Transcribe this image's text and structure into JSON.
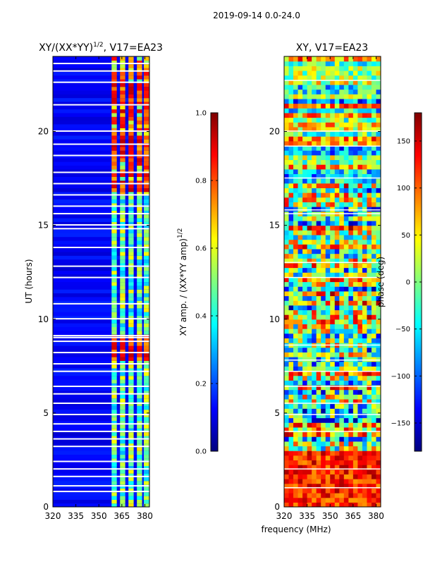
{
  "figure": {
    "suptitle": "2019-09-14 0.0-24.0",
    "xlabel": "frequency (MHz)"
  },
  "colors": {
    "jet": [
      "#00007f",
      "#0000ff",
      "#007fff",
      "#00ffff",
      "#7fff7f",
      "#ffff00",
      "#ff7f00",
      "#ff0000",
      "#7f0000"
    ],
    "gap": "#ffffff"
  },
  "chart_data": [
    {
      "type": "heatmap",
      "title_main": "XY/(XX*YY)",
      "title_sup": "1/2",
      "title_rest": ", V17=EA23",
      "xlabel": "",
      "ylabel": "UT (hours)",
      "xlim": [
        320,
        383
      ],
      "ylim": [
        0,
        24
      ],
      "xticks": [
        320,
        335,
        350,
        365,
        380
      ],
      "xtick_labels": [
        "320",
        "335",
        "350",
        "365",
        "380"
      ],
      "yticks": [
        0,
        5,
        10,
        15,
        20
      ],
      "ytick_labels": [
        "0",
        "5",
        "10",
        "15",
        "20"
      ],
      "colorbar": {
        "label_main": "XY amp. / (XX*YY amp)",
        "label_sup": "1/2",
        "range": [
          0.0,
          1.0
        ],
        "ticks": [
          0.0,
          0.2,
          0.4,
          0.6,
          0.8,
          1.0
        ],
        "tick_labels": [
          "0.0",
          "0.2",
          "0.4",
          "0.6",
          "0.8",
          "1.0"
        ]
      },
      "features": {
        "high_amp_channels_mhz": [
          360,
          365.5,
          371,
          376.5,
          381
        ],
        "channel_width_mhz": 3.4,
        "flagged_rows_hours": [
          0.8,
          1.1,
          1.6,
          2.0,
          2.4,
          3.2,
          3.6,
          4.0,
          4.4,
          4.9,
          5.5,
          6.0,
          6.4,
          7.2,
          7.6,
          8.2,
          8.8,
          9.0,
          9.1,
          10.0,
          10.8,
          12.2,
          12.8,
          13.8,
          14.8,
          15.0,
          15.6,
          16.0,
          16.6,
          17.2,
          17.8,
          18.7,
          19.3,
          20.0,
          21.4,
          22.6,
          23.2,
          23.6
        ],
        "bright_rows_hours": [
          8.0,
          8.7,
          17.0,
          19.2,
          21.6,
          22.2
        ]
      }
    },
    {
      "type": "heatmap",
      "title_main": "XY, V17=EA23",
      "xlabel": "",
      "ylabel": "",
      "xlim": [
        320,
        383
      ],
      "ylim": [
        0,
        24
      ],
      "xticks": [
        320,
        335,
        350,
        365,
        380
      ],
      "xtick_labels": [
        "320",
        "335",
        "350",
        "365",
        "380"
      ],
      "yticks": [
        0,
        5,
        10,
        15,
        20
      ],
      "ytick_labels": [
        "0",
        "5",
        "10",
        "15",
        "20"
      ],
      "colorbar": {
        "label_main": "phase (deg)",
        "range": [
          -180,
          180
        ],
        "ticks": [
          -150,
          -100,
          -50,
          0,
          50,
          100,
          150
        ],
        "tick_labels": [
          "−150",
          "−100",
          "−50",
          "0",
          "50",
          "100",
          "150"
        ]
      },
      "features": {
        "flagged_rows_hours": [
          1.0,
          2.0,
          4.0,
          4.9,
          5.5,
          6.4,
          7.2,
          7.8,
          8.6,
          12.2,
          13.0,
          15.6,
          15.8,
          17.5,
          19.2,
          20.0,
          22.7
        ]
      }
    }
  ]
}
